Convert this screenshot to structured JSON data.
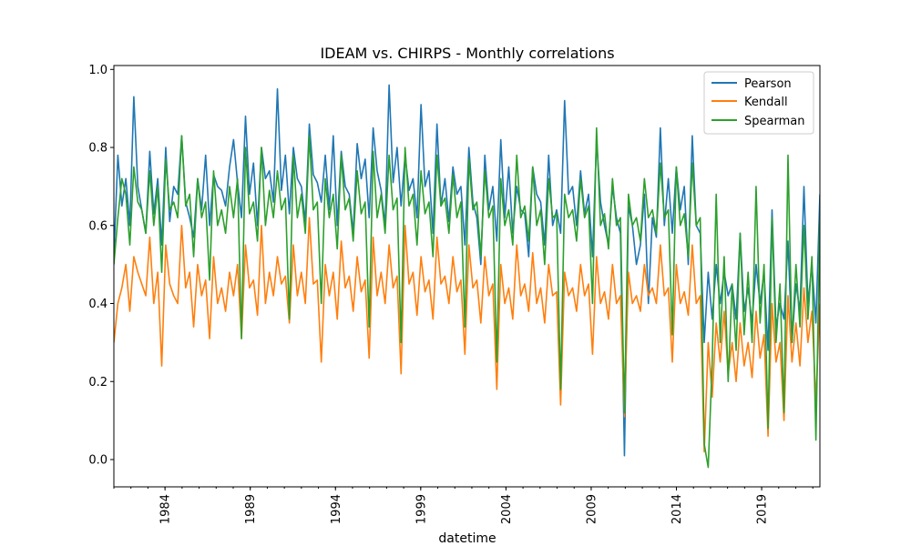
{
  "chart_data": {
    "type": "line",
    "title": "IDEAM vs. CHIRPS - Monthly correlations",
    "xlabel": "datetime",
    "ylabel": "",
    "x_range": [
      "1981-01",
      "2022-06"
    ],
    "x_major_ticks": [
      "1984",
      "1989",
      "1994",
      "1999",
      "2004",
      "2009",
      "2014",
      "2019"
    ],
    "ylim": [
      -0.07,
      1.01
    ],
    "y_ticks": [
      "0.0",
      "0.2",
      "0.4",
      "0.6",
      "0.8",
      "1.0"
    ],
    "grid": false,
    "legend": "top-right",
    "series": [
      {
        "name": "Pearson",
        "color": "#1f77b4",
        "note_resolution": "values sampled quarterly (Jan, Apr, Jul, Oct), approximate",
        "values": [
          0.52,
          0.78,
          0.65,
          0.72,
          0.6,
          0.93,
          0.7,
          0.64,
          0.58,
          0.79,
          0.63,
          0.72,
          0.55,
          0.8,
          0.61,
          0.7,
          0.68,
          0.83,
          0.66,
          0.62,
          0.57,
          0.72,
          0.64,
          0.78,
          0.6,
          0.73,
          0.7,
          0.69,
          0.65,
          0.75,
          0.82,
          0.71,
          0.62,
          0.88,
          0.68,
          0.76,
          0.6,
          0.8,
          0.72,
          0.74,
          0.66,
          0.95,
          0.69,
          0.78,
          0.63,
          0.8,
          0.72,
          0.7,
          0.61,
          0.86,
          0.73,
          0.71,
          0.66,
          0.78,
          0.64,
          0.83,
          0.6,
          0.79,
          0.7,
          0.68,
          0.58,
          0.81,
          0.72,
          0.77,
          0.62,
          0.85,
          0.74,
          0.69,
          0.6,
          0.96,
          0.71,
          0.8,
          0.65,
          0.78,
          0.69,
          0.72,
          0.62,
          0.91,
          0.7,
          0.74,
          0.58,
          0.86,
          0.65,
          0.72,
          0.61,
          0.75,
          0.68,
          0.7,
          0.55,
          0.8,
          0.66,
          0.62,
          0.5,
          0.78,
          0.64,
          0.7,
          0.56,
          0.82,
          0.62,
          0.75,
          0.58,
          0.7,
          0.64,
          0.63,
          0.52,
          0.75,
          0.68,
          0.66,
          0.55,
          0.78,
          0.6,
          0.64,
          0.58,
          0.92,
          0.68,
          0.7,
          0.6,
          0.74,
          0.63,
          0.68,
          0.52,
          0.82,
          0.66,
          0.6,
          0.55,
          0.7,
          0.62,
          0.58,
          0.01,
          0.65,
          0.6,
          0.5,
          0.55,
          0.68,
          0.4,
          0.62,
          0.57,
          0.85,
          0.6,
          0.72,
          0.58,
          0.75,
          0.64,
          0.7,
          0.5,
          0.83,
          0.6,
          0.58,
          0.3,
          0.48,
          0.36,
          0.5,
          0.4,
          0.48,
          0.42,
          0.45,
          0.36,
          0.58,
          0.38,
          0.44,
          0.35,
          0.5,
          0.4,
          0.48,
          0.28,
          0.64,
          0.34,
          0.4,
          0.36,
          0.56,
          0.3,
          0.45,
          0.38,
          0.7,
          0.4,
          0.5,
          0.35,
          0.68
        ]
      },
      {
        "name": "Kendall",
        "color": "#ff7f0e",
        "note_resolution": "values sampled quarterly (Jan, Apr, Jul, Oct), approximate",
        "values": [
          0.3,
          0.4,
          0.44,
          0.5,
          0.38,
          0.52,
          0.48,
          0.45,
          0.42,
          0.57,
          0.4,
          0.48,
          0.24,
          0.55,
          0.45,
          0.42,
          0.4,
          0.6,
          0.44,
          0.48,
          0.34,
          0.5,
          0.42,
          0.46,
          0.31,
          0.52,
          0.4,
          0.44,
          0.38,
          0.48,
          0.42,
          0.5,
          0.31,
          0.55,
          0.44,
          0.46,
          0.37,
          0.6,
          0.4,
          0.48,
          0.42,
          0.52,
          0.45,
          0.47,
          0.35,
          0.55,
          0.42,
          0.48,
          0.4,
          0.62,
          0.45,
          0.46,
          0.25,
          0.5,
          0.42,
          0.48,
          0.36,
          0.56,
          0.44,
          0.47,
          0.38,
          0.52,
          0.43,
          0.46,
          0.26,
          0.57,
          0.42,
          0.48,
          0.4,
          0.55,
          0.44,
          0.47,
          0.22,
          0.6,
          0.45,
          0.48,
          0.37,
          0.52,
          0.43,
          0.46,
          0.36,
          0.57,
          0.45,
          0.47,
          0.4,
          0.52,
          0.43,
          0.46,
          0.27,
          0.55,
          0.44,
          0.46,
          0.35,
          0.52,
          0.42,
          0.45,
          0.18,
          0.5,
          0.4,
          0.44,
          0.36,
          0.55,
          0.42,
          0.45,
          0.38,
          0.53,
          0.4,
          0.44,
          0.35,
          0.5,
          0.42,
          0.43,
          0.14,
          0.48,
          0.42,
          0.44,
          0.38,
          0.5,
          0.42,
          0.45,
          0.27,
          0.52,
          0.4,
          0.43,
          0.36,
          0.5,
          0.4,
          0.42,
          0.11,
          0.48,
          0.4,
          0.42,
          0.38,
          0.5,
          0.42,
          0.44,
          0.4,
          0.55,
          0.42,
          0.44,
          0.25,
          0.5,
          0.4,
          0.43,
          0.37,
          0.55,
          0.4,
          0.42,
          0.02,
          0.3,
          0.16,
          0.35,
          0.25,
          0.38,
          0.22,
          0.3,
          0.2,
          0.35,
          0.24,
          0.3,
          0.21,
          0.38,
          0.26,
          0.32,
          0.06,
          0.4,
          0.25,
          0.3,
          0.1,
          0.42,
          0.25,
          0.35,
          0.24,
          0.44,
          0.3,
          0.38,
          0.15,
          0.4
        ]
      },
      {
        "name": "Spearman",
        "color": "#2ca02c",
        "note_resolution": "values sampled quarterly (Jan, Apr, Jul, Oct), approximate",
        "values": [
          0.5,
          0.62,
          0.72,
          0.68,
          0.55,
          0.75,
          0.66,
          0.64,
          0.58,
          0.74,
          0.6,
          0.7,
          0.48,
          0.77,
          0.64,
          0.66,
          0.62,
          0.83,
          0.65,
          0.68,
          0.52,
          0.72,
          0.62,
          0.66,
          0.46,
          0.74,
          0.6,
          0.64,
          0.58,
          0.7,
          0.62,
          0.72,
          0.31,
          0.8,
          0.63,
          0.66,
          0.56,
          0.8,
          0.6,
          0.69,
          0.62,
          0.74,
          0.64,
          0.67,
          0.36,
          0.78,
          0.62,
          0.68,
          0.58,
          0.83,
          0.64,
          0.66,
          0.4,
          0.72,
          0.62,
          0.68,
          0.54,
          0.78,
          0.64,
          0.67,
          0.56,
          0.74,
          0.63,
          0.66,
          0.34,
          0.79,
          0.62,
          0.68,
          0.58,
          0.78,
          0.64,
          0.67,
          0.3,
          0.8,
          0.65,
          0.68,
          0.55,
          0.74,
          0.63,
          0.66,
          0.52,
          0.78,
          0.65,
          0.67,
          0.58,
          0.73,
          0.62,
          0.66,
          0.34,
          0.77,
          0.64,
          0.66,
          0.52,
          0.74,
          0.62,
          0.65,
          0.25,
          0.72,
          0.6,
          0.64,
          0.55,
          0.78,
          0.62,
          0.65,
          0.56,
          0.75,
          0.6,
          0.64,
          0.5,
          0.72,
          0.62,
          0.63,
          0.18,
          0.68,
          0.62,
          0.64,
          0.56,
          0.72,
          0.62,
          0.65,
          0.4,
          0.85,
          0.6,
          0.63,
          0.54,
          0.72,
          0.6,
          0.62,
          0.12,
          0.68,
          0.6,
          0.62,
          0.56,
          0.72,
          0.62,
          0.64,
          0.58,
          0.76,
          0.62,
          0.64,
          0.32,
          0.75,
          0.6,
          0.63,
          0.52,
          0.76,
          0.6,
          0.62,
          0.04,
          -0.02,
          0.25,
          0.68,
          0.3,
          0.52,
          0.2,
          0.45,
          0.28,
          0.58,
          0.32,
          0.48,
          0.3,
          0.7,
          0.35,
          0.5,
          0.08,
          0.62,
          0.3,
          0.45,
          0.12,
          0.78,
          0.3,
          0.5,
          0.34,
          0.6,
          0.36,
          0.52,
          0.05,
          0.62
        ]
      }
    ]
  }
}
